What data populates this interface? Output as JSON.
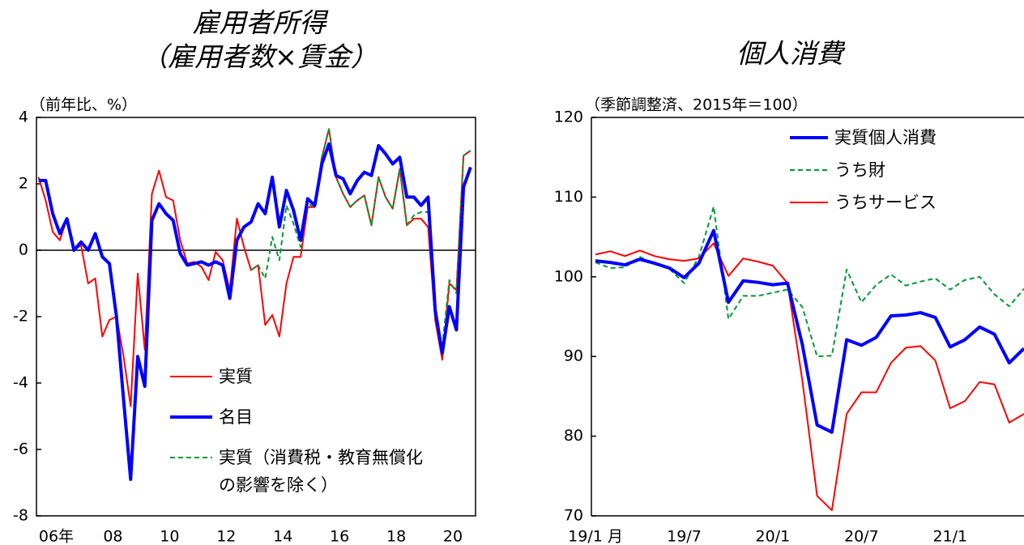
{
  "chart_data": [
    {
      "type": "line",
      "title": "雇用者所得",
      "subtitle": "（雇用者数×賃金）",
      "y_label": "（前年比、%）",
      "x": [
        2005.875,
        2006.125,
        2006.375,
        2006.625,
        2006.875,
        2007.125,
        2007.375,
        2007.625,
        2007.875,
        2008.125,
        2008.375,
        2008.625,
        2008.875,
        2009.125,
        2009.375,
        2009.625,
        2009.875,
        2010.125,
        2010.375,
        2010.625,
        2010.875,
        2011.125,
        2011.375,
        2011.625,
        2011.875,
        2012.125,
        2012.375,
        2012.625,
        2012.875,
        2013.125,
        2013.375,
        2013.625,
        2013.875,
        2014.125,
        2014.375,
        2014.625,
        2014.875,
        2015.125,
        2015.375,
        2015.625,
        2015.875,
        2016.125,
        2016.375,
        2016.625,
        2016.875,
        2017.125,
        2017.375,
        2017.625,
        2017.875,
        2018.125,
        2018.375,
        2018.625,
        2018.875,
        2019.125,
        2019.375,
        2019.625,
        2019.875,
        2020.125,
        2020.375,
        2020.625,
        2020.875,
        2021.125
      ],
      "xlim": [
        2005.8,
        2021.3
      ],
      "xticks": [
        {
          "value": 2006.5,
          "label": "06年"
        },
        {
          "value": 2008.5,
          "label": "08"
        },
        {
          "value": 2010.5,
          "label": "10"
        },
        {
          "value": 2012.5,
          "label": "12"
        },
        {
          "value": 2014.5,
          "label": "14"
        },
        {
          "value": 2016.5,
          "label": "16"
        },
        {
          "value": 2018.5,
          "label": "18"
        },
        {
          "value": 2020.5,
          "label": "20"
        }
      ],
      "ylim": [
        -8,
        4
      ],
      "yticks": [
        -8,
        -6,
        -4,
        -2,
        0,
        2,
        4
      ],
      "zero_line": true,
      "legend": {
        "position": "lower center"
      },
      "series": [
        {
          "name": "実質",
          "color": "#ff0000",
          "line_width": 2,
          "line_style": "solid",
          "values": [
            2.2,
            1.5,
            0.55,
            0.3,
            0.95,
            0.0,
            0.15,
            -1.0,
            -0.85,
            -2.6,
            -2.1,
            -2.0,
            -3.2,
            -4.7,
            -0.7,
            -3.0,
            1.7,
            2.4,
            1.6,
            1.5,
            0.3,
            -0.4,
            -0.35,
            -0.5,
            -0.9,
            -0.05,
            -0.3,
            -1.2,
            0.95,
            0.1,
            -0.6,
            -0.45,
            -2.25,
            -1.95,
            -2.6,
            -1.0,
            -0.2,
            -0.2,
            1.3,
            1.3,
            2.8,
            3.65,
            2.2,
            1.7,
            1.3,
            1.5,
            1.65,
            0.75,
            2.2,
            1.6,
            1.25,
            2.45,
            0.75,
            0.95,
            0.95,
            0.7,
            -2.1,
            -3.3,
            -1.0,
            -1.2,
            2.85,
            3.0
          ]
        },
        {
          "name": "名目",
          "color": "#0000ff",
          "line_width": 4,
          "line_style": "solid",
          "values": [
            2.1,
            2.1,
            1.1,
            0.5,
            0.95,
            0.0,
            0.25,
            0.0,
            0.5,
            -0.2,
            -0.4,
            -2.0,
            -4.5,
            -6.9,
            -3.2,
            -4.1,
            0.9,
            1.4,
            1.1,
            0.9,
            -0.1,
            -0.45,
            -0.4,
            -0.35,
            -0.45,
            -0.35,
            -0.45,
            -1.45,
            0.3,
            0.7,
            0.85,
            1.4,
            1.1,
            2.2,
            0.7,
            1.8,
            1.2,
            0.3,
            1.55,
            1.35,
            2.6,
            3.2,
            2.25,
            2.15,
            1.7,
            2.1,
            2.35,
            2.25,
            3.15,
            2.9,
            2.6,
            2.8,
            1.6,
            1.6,
            1.35,
            1.6,
            -1.8,
            -3.1,
            -1.7,
            -2.4,
            1.9,
            2.5
          ]
        },
        {
          "name": "実質（消費税・教育無償化の影響を除く）",
          "color": "#009933",
          "line_width": 2,
          "line_style": "dashed",
          "values": [
            null,
            null,
            null,
            null,
            null,
            null,
            null,
            null,
            null,
            null,
            null,
            null,
            null,
            null,
            null,
            null,
            null,
            null,
            null,
            null,
            null,
            null,
            null,
            null,
            null,
            null,
            null,
            null,
            null,
            null,
            -0.6,
            -0.45,
            -0.85,
            0.4,
            -0.3,
            1.35,
            0.8,
            0.1,
            1.4,
            1.3,
            2.8,
            3.65,
            2.2,
            1.7,
            1.3,
            1.5,
            1.65,
            0.75,
            2.2,
            1.6,
            1.25,
            2.45,
            0.75,
            1.05,
            1.15,
            1.15,
            -2.0,
            -2.9,
            -0.9,
            -1.3,
            2.85,
            3.0
          ]
        }
      ]
    },
    {
      "type": "line",
      "title": "個人消費",
      "y_label": "（季節調整済、2015年＝100）",
      "categories": [
        "19/1 月",
        null,
        null,
        null,
        null,
        null,
        "19/7",
        null,
        null,
        null,
        null,
        null,
        "20/1",
        null,
        null,
        null,
        null,
        null,
        "20/7",
        null,
        null,
        null,
        null,
        null,
        "21/1",
        null,
        null,
        null,
        null,
        null
      ],
      "ylim": [
        70,
        120
      ],
      "yticks": [
        70,
        80,
        90,
        100,
        110,
        120
      ],
      "legend": {
        "position": "upper right"
      },
      "series": [
        {
          "name": "実質個人消費",
          "color": "#0000ff",
          "line_width": 4,
          "line_style": "solid",
          "values": [
            102.0,
            101.8,
            101.5,
            102.2,
            101.7,
            101.1,
            99.9,
            101.7,
            105.8,
            96.8,
            99.5,
            99.3,
            99.0,
            99.2,
            91.5,
            81.4,
            80.5,
            92.1,
            91.4,
            92.4,
            95.1,
            95.2,
            95.5,
            94.9,
            91.2,
            92.1,
            93.7,
            92.8,
            89.2,
            91.0
          ]
        },
        {
          "name": "うち財",
          "color": "#009933",
          "line_width": 2,
          "line_style": "dashed",
          "values": [
            101.8,
            101.1,
            101.2,
            102.5,
            101.6,
            101.0,
            99.2,
            102.5,
            108.8,
            94.7,
            97.6,
            97.6,
            98.0,
            98.4,
            96.2,
            90.0,
            90.1,
            100.9,
            96.8,
            99.0,
            100.3,
            98.9,
            99.4,
            99.8,
            98.4,
            99.6,
            100.0,
            97.8,
            96.3,
            98.5
          ]
        },
        {
          "name": "うちサービス",
          "color": "#ff0000",
          "line_width": 2,
          "line_style": "solid",
          "values": [
            102.8,
            103.2,
            102.6,
            103.3,
            102.6,
            102.2,
            102.0,
            102.3,
            104.2,
            100.1,
            102.3,
            101.9,
            101.4,
            99.2,
            87.0,
            72.5,
            70.7,
            82.8,
            85.5,
            85.5,
            89.2,
            91.1,
            91.3,
            89.5,
            83.5,
            84.4,
            86.8,
            86.5,
            81.7,
            82.8
          ]
        }
      ]
    }
  ]
}
